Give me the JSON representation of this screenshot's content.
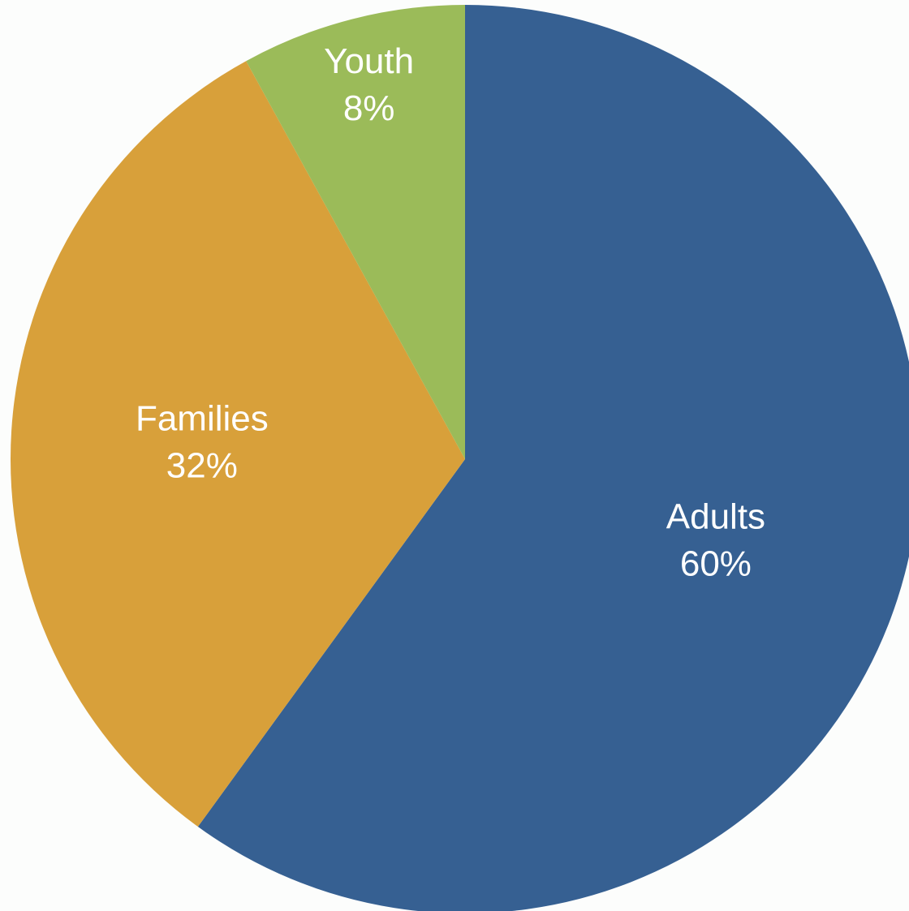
{
  "chart_data": {
    "type": "pie",
    "title": "",
    "slices": [
      {
        "name": "Adults",
        "value": 60,
        "value_label": "60%",
        "color": "#366092"
      },
      {
        "name": "Families",
        "value": 32,
        "value_label": "32%",
        "color": "#d8a03a"
      },
      {
        "name": "Youth",
        "value": 8,
        "value_label": "8%",
        "color": "#9bbb59"
      }
    ],
    "start_angle": "12 o'clock",
    "direction": "clockwise",
    "labels_inside": true,
    "legend": "none"
  }
}
